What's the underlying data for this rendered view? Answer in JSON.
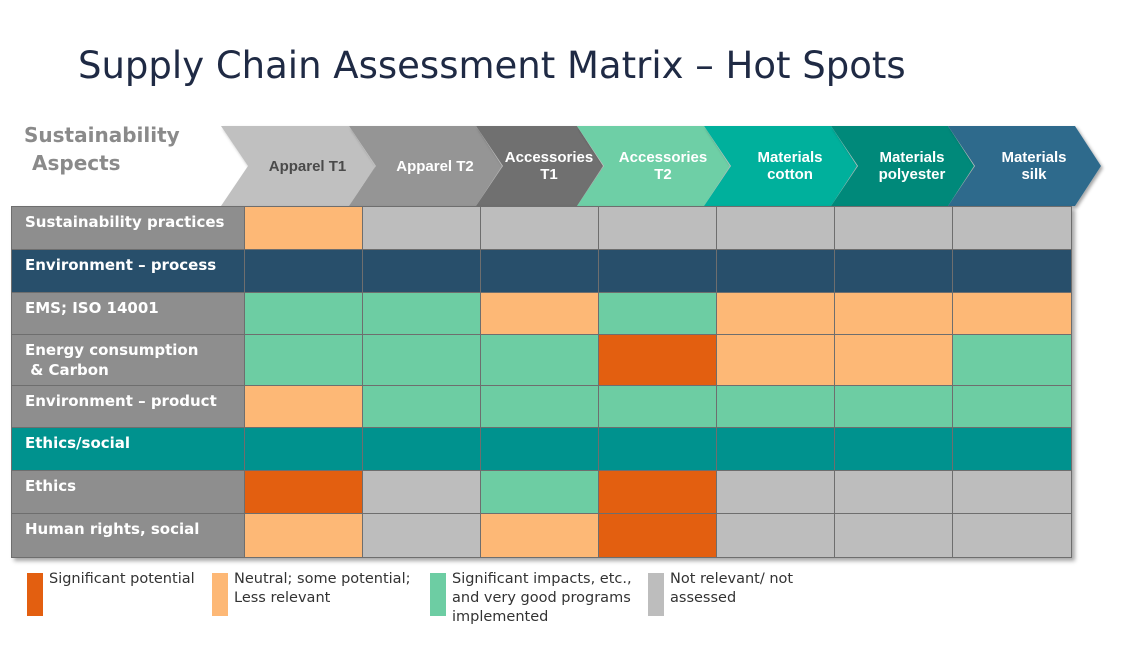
{
  "title": "Supply Chain Assessment Matrix – Hot Spots",
  "aspects_header": [
    "Sustainability",
    "Aspects"
  ],
  "colors": {
    "significant_potential": "#e35f10",
    "neutral": "#fdb876",
    "good": "#6dcda3",
    "not_relevant": "#bdbdbd",
    "section_environment": "#284f6b",
    "section_ethics": "#00928e",
    "label_bg": "#8e8e8e"
  },
  "columns": [
    {
      "label": "Apparel T1",
      "fill": "#c0c0c0",
      "text": "#4a4a4a"
    },
    {
      "label": "Apparel T2",
      "fill": "#959595",
      "text": "#ffffff"
    },
    {
      "label": "Accessories\nT1",
      "fill": "#707070",
      "text": "#ffffff"
    },
    {
      "label": "Accessories\nT2",
      "fill": "#6ecfa6",
      "text": "#ffffff"
    },
    {
      "label": "Materials\ncotton",
      "fill": "#00b09c",
      "text": "#ffffff"
    },
    {
      "label": "Materials\npolyester",
      "fill": "#00897a",
      "text": "#ffffff"
    },
    {
      "label": "Materials\nsilk",
      "fill": "#2e6a8c",
      "text": "#ffffff"
    }
  ],
  "rows": [
    {
      "label": "Sustainability practices",
      "kind": "data",
      "cells": [
        "N",
        "X",
        "X",
        "X",
        "X",
        "X",
        "X"
      ]
    },
    {
      "label": "Environment – process",
      "kind": "section",
      "color": "#284f6b"
    },
    {
      "label": "EMS; ISO 14001",
      "kind": "data",
      "cells": [
        "G",
        "G",
        "N",
        "G",
        "N",
        "N",
        "N"
      ]
    },
    {
      "label": "Energy consumption\n & Carbon",
      "kind": "data",
      "cells": [
        "G",
        "G",
        "G",
        "S",
        "N",
        "N",
        "G"
      ]
    },
    {
      "label": "Environment – product",
      "kind": "data",
      "cells": [
        "N",
        "G",
        "G",
        "G",
        "G",
        "G",
        "G"
      ]
    },
    {
      "label": "Ethics/social",
      "kind": "section",
      "color": "#00928e"
    },
    {
      "label": "Ethics",
      "kind": "data",
      "cells": [
        "S",
        "X",
        "G",
        "S",
        "X",
        "X",
        "X"
      ]
    },
    {
      "label": "Human rights, social",
      "kind": "data",
      "cells": [
        "N",
        "X",
        "N",
        "S",
        "X",
        "X",
        "X"
      ]
    }
  ],
  "legend": [
    {
      "code": "S",
      "color": "#e35f10",
      "text": "Significant potential"
    },
    {
      "code": "N",
      "color": "#fdb876",
      "text": "Neutral; some potential;\nLess relevant"
    },
    {
      "code": "G",
      "color": "#6dcda3",
      "text": "Significant impacts, etc.,\nand very good programs\nimplemented"
    },
    {
      "code": "X",
      "color": "#bdbdbd",
      "text": "Not relevant/ not\nassessed"
    }
  ]
}
